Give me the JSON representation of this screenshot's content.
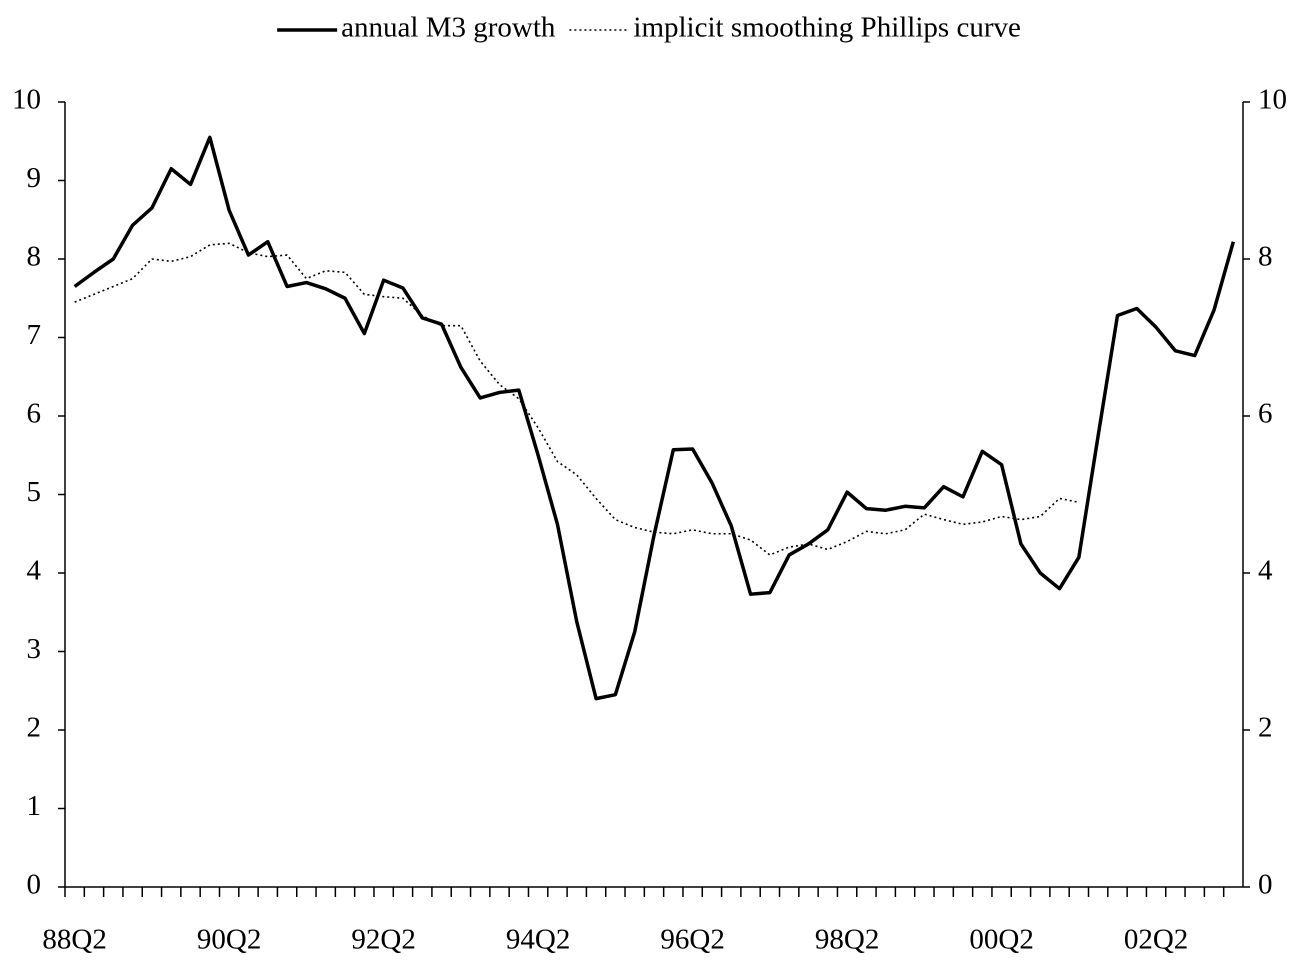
{
  "chart_data": {
    "type": "line",
    "categories": [
      "88Q2",
      null,
      null,
      null,
      null,
      null,
      null,
      null,
      "90Q2",
      null,
      null,
      null,
      null,
      null,
      null,
      null,
      "92Q2",
      null,
      null,
      null,
      null,
      null,
      null,
      null,
      "94Q2",
      null,
      null,
      null,
      null,
      null,
      null,
      null,
      "96Q2",
      null,
      null,
      null,
      null,
      null,
      null,
      null,
      "98Q2",
      null,
      null,
      null,
      null,
      null,
      null,
      null,
      "00Q2",
      null,
      null,
      null,
      null,
      null,
      null,
      null,
      "02Q2",
      null,
      null,
      null,
      null
    ],
    "series": [
      {
        "name": "annual M3 growth",
        "color": "#000000",
        "style": "solid",
        "values": [
          7.65,
          7.83,
          8.0,
          8.43,
          8.65,
          9.15,
          8.95,
          9.55,
          8.62,
          8.05,
          8.22,
          7.65,
          7.7,
          7.62,
          7.5,
          7.05,
          7.73,
          7.63,
          7.25,
          7.17,
          6.62,
          6.23,
          6.3,
          6.33,
          5.5,
          4.62,
          3.38,
          2.4,
          2.45,
          3.25,
          4.48,
          5.57,
          5.58,
          5.15,
          4.6,
          3.73,
          3.75,
          4.23,
          4.37,
          4.55,
          5.03,
          4.82,
          4.8,
          4.85,
          4.83,
          5.1,
          4.97,
          5.55,
          5.38,
          4.37,
          4.0,
          3.8,
          4.2,
          5.75,
          7.28,
          7.37,
          7.13,
          6.83,
          6.77,
          7.35,
          8.22
        ]
      },
      {
        "name": "implicit smoothing Phillips curve",
        "color": "#000000",
        "style": "dotted",
        "values": [
          7.45,
          7.55,
          7.65,
          7.75,
          8.0,
          7.97,
          8.03,
          8.18,
          8.2,
          8.08,
          8.03,
          8.05,
          7.75,
          7.85,
          7.83,
          7.55,
          7.52,
          7.5,
          7.28,
          7.15,
          7.15,
          6.7,
          6.4,
          6.22,
          5.85,
          5.42,
          5.25,
          4.95,
          4.68,
          4.58,
          4.52,
          4.5,
          4.55,
          4.5,
          4.5,
          4.42,
          4.23,
          4.33,
          4.37,
          4.3,
          4.4,
          4.53,
          4.5,
          4.55,
          4.75,
          4.68,
          4.62,
          4.65,
          4.72,
          4.68,
          4.72,
          4.95,
          4.9,
          null,
          null,
          null,
          null,
          null,
          null,
          null,
          null
        ]
      }
    ],
    "ylim": [
      0,
      10
    ],
    "yticks": [
      0,
      1,
      2,
      3,
      4,
      5,
      6,
      7,
      8,
      9,
      10
    ],
    "y2lim": [
      0,
      10
    ],
    "y2ticks": [
      0,
      2,
      4,
      6,
      8,
      10
    ],
    "grid": false,
    "legend": "top"
  }
}
